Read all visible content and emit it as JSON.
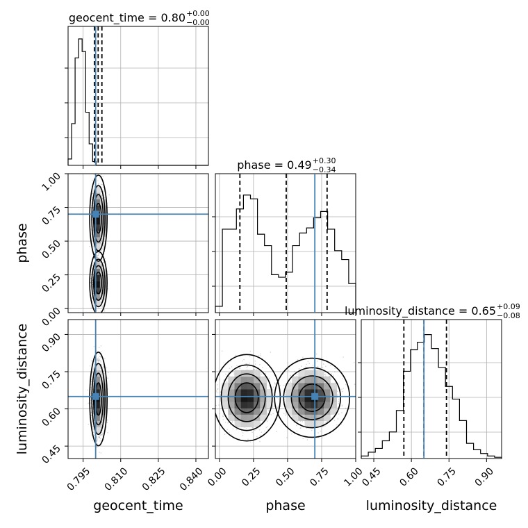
{
  "chart_data": {
    "type": "corner",
    "parameters": [
      {
        "name": "geocent_time",
        "range": [
          0.789,
          0.845
        ],
        "ticks": [
          "0.795",
          "0.810",
          "0.825",
          "0.840"
        ],
        "truth": 0.8,
        "median": 0.801,
        "quantiles": [
          0.7995,
          0.801,
          0.8025
        ],
        "title_main": "geocent_time = 0.80",
        "title_sup": "+0.00",
        "title_sub": "−0.00"
      },
      {
        "name": "phase",
        "range": [
          -0.03,
          1.0
        ],
        "ticks": [
          "0.00",
          "0.25",
          "0.50",
          "0.75",
          "1.00"
        ],
        "truth": 0.7,
        "median": 0.49,
        "quantiles": [
          0.15,
          0.49,
          0.79
        ],
        "title_main": "phase = 0.49",
        "title_sup": "+0.30",
        "title_sub": "−0.34"
      },
      {
        "name": "luminosity_distance",
        "range": [
          0.4,
          0.96
        ],
        "ticks": [
          "0.45",
          "0.60",
          "0.75",
          "0.90"
        ],
        "truth": 0.65,
        "median": 0.65,
        "quantiles": [
          0.57,
          0.65,
          0.74
        ],
        "title_main": "luminosity_distance = 0.65",
        "title_sup": "+0.09",
        "title_sub": "−0.08"
      }
    ],
    "histograms": {
      "geocent_time": {
        "bin_width": 0.0014,
        "start": 0.789,
        "counts": [
          0.05,
          0.33,
          0.85,
          1.0,
          0.9,
          0.42,
          0.17,
          0.03,
          0,
          0,
          0,
          0,
          0,
          0,
          0,
          0,
          0,
          0,
          0,
          0,
          0,
          0,
          0,
          0,
          0,
          0,
          0,
          0,
          0,
          0,
          0,
          0,
          0,
          0,
          0,
          0,
          0,
          0,
          0,
          0
        ]
      },
      "phase": {
        "bin_width": 0.0515,
        "start": -0.03,
        "counts": [
          0.05,
          0.66,
          0.66,
          0.82,
          0.93,
          0.9,
          0.62,
          0.53,
          0.3,
          0.28,
          0.32,
          0.53,
          0.63,
          0.67,
          0.75,
          0.8,
          0.66,
          0.49,
          0.42,
          0.23
        ]
      },
      "luminosity_distance": {
        "bin_width": 0.028,
        "start": 0.4,
        "counts": [
          0.02,
          0.05,
          0.08,
          0.14,
          0.21,
          0.38,
          0.69,
          0.86,
          0.92,
          0.98,
          0.87,
          0.72,
          0.57,
          0.47,
          0.3,
          0.12,
          0.07,
          0.04,
          0.02,
          0.01
        ]
      }
    },
    "pairs": [
      {
        "x": "geocent_time",
        "y": "phase",
        "modes": [
          {
            "cx": 0.8011,
            "cy": 0.19,
            "sx": 0.0012,
            "sy": 0.08
          },
          {
            "cx": 0.8011,
            "cy": 0.67,
            "sx": 0.0012,
            "sy": 0.11
          }
        ]
      },
      {
        "x": "geocent_time",
        "y": "luminosity_distance",
        "modes": [
          {
            "cx": 0.8011,
            "cy": 0.64,
            "sx": 0.0012,
            "sy": 0.065
          }
        ]
      },
      {
        "x": "phase",
        "y": "luminosity_distance",
        "modes": [
          {
            "cx": 0.2,
            "cy": 0.645,
            "sx": 0.085,
            "sy": 0.06
          },
          {
            "cx": 0.68,
            "cy": 0.645,
            "sx": 0.095,
            "sy": 0.055
          }
        ]
      }
    ],
    "grid": true,
    "colors": {
      "truth": "#4682b4",
      "hist": "#000000",
      "grid": "#b0b0b0",
      "points": "#888888"
    }
  }
}
